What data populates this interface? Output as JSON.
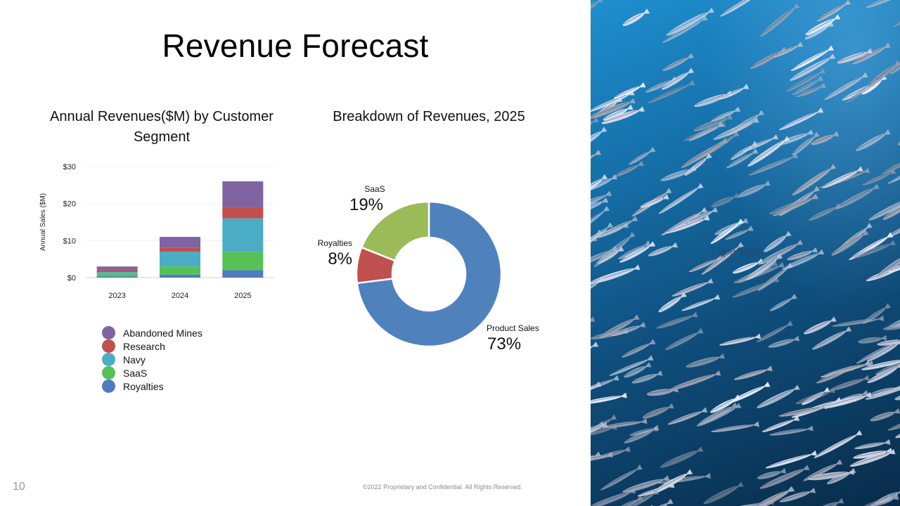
{
  "slide": {
    "title": "Revenue Forecast",
    "page_number": "10",
    "copyright": "©2022 Proprietary and Confidential. All Rights Reserved.",
    "placeholder_text": "Type text"
  },
  "chart_data": [
    {
      "type": "bar",
      "stacked": true,
      "title": "Annual Revenues($M) by Customer Segment",
      "ylabel": "Annual Sales ($M)",
      "xlabel": "",
      "categories": [
        "2023",
        "2024",
        "2025"
      ],
      "ylim": [
        0,
        30
      ],
      "yticks": [
        0,
        10,
        20,
        30
      ],
      "ytick_labels": [
        "$0",
        "$10",
        "$20",
        "$30"
      ],
      "grid": true,
      "legend_placement": "bottom-left",
      "series": [
        {
          "name": "Royalties",
          "color": "#4f7bc0",
          "values": [
            0.3,
            0.8,
            2.0
          ]
        },
        {
          "name": "SaaS",
          "color": "#56c157",
          "values": [
            0.7,
            2.2,
            5.0
          ]
        },
        {
          "name": "Navy",
          "color": "#4bacc6",
          "values": [
            0.5,
            4.0,
            9.0
          ]
        },
        {
          "name": "Research",
          "color": "#c0504d",
          "values": [
            0.5,
            1.0,
            3.0
          ]
        },
        {
          "name": "Abandoned Mines",
          "color": "#8064a2",
          "values": [
            1.0,
            3.0,
            7.0
          ]
        }
      ]
    },
    {
      "type": "pie",
      "donut": true,
      "title": "Breakdown of Revenues, 2025",
      "slices": [
        {
          "name": "Product Sales",
          "percent": 73,
          "label": "73%",
          "color": "#4f81bd"
        },
        {
          "name": "Royalties",
          "percent": 8,
          "label": "8%",
          "color": "#c0504d"
        },
        {
          "name": "SaaS",
          "percent": 19,
          "label": "19%",
          "color": "#9bbb59"
        }
      ]
    }
  ]
}
